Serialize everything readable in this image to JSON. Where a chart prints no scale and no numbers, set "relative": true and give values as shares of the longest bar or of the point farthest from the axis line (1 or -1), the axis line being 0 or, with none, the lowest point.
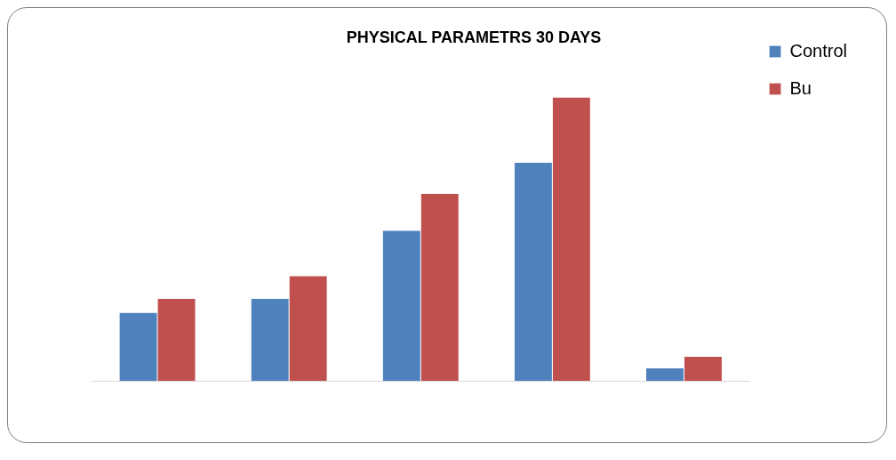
{
  "chart_data": {
    "type": "bar",
    "title": "PHYSICAL PARAMETRS 30 DAYS",
    "relative": true,
    "categories": [
      null,
      null,
      null,
      null,
      null
    ],
    "series": [
      {
        "name": "Control",
        "color": "#4f81bd",
        "values": [
          0.24,
          0.29,
          0.53,
          0.77,
          0.044
        ]
      },
      {
        "name": "Bu",
        "color": "#c0504d",
        "values": [
          0.29,
          0.37,
          0.66,
          1,
          0.085
        ]
      }
    ],
    "legend": "top right",
    "grid": false
  }
}
